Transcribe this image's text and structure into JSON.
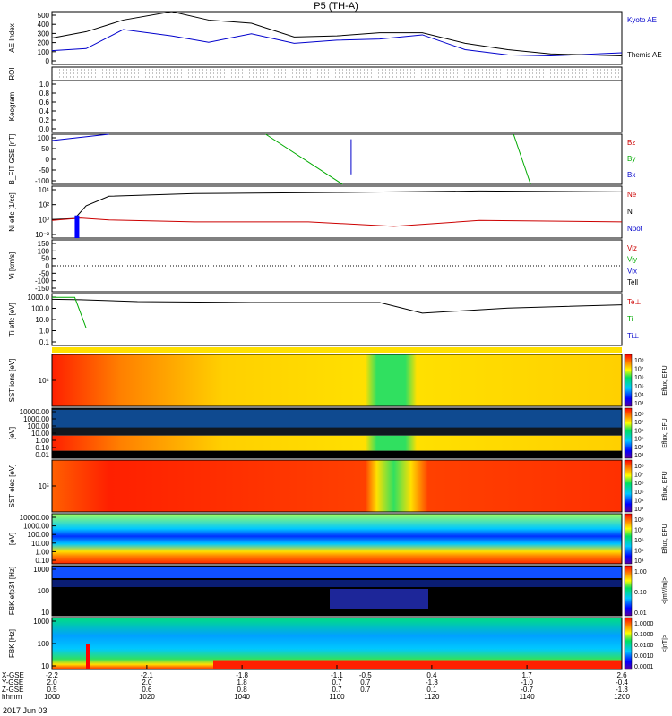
{
  "title": "P5 (TH-A)",
  "date": "2017 Jun 03",
  "colors": {
    "black": "#000000",
    "blue": "#0000cc",
    "red": "#cc0000",
    "green": "#00aa00"
  },
  "chart_data": [
    {
      "id": "ae",
      "type": "line",
      "ylabel": "AE Index",
      "ylim": [
        0,
        500
      ],
      "yticks": [
        "500",
        "400",
        "300",
        "200",
        "100",
        "0"
      ],
      "legend": [
        "Kyoto AE",
        "Themis AE"
      ],
      "series": [
        {
          "name": "Kyoto AE",
          "color": "#0000cc",
          "x": [
            10.0,
            10.12,
            10.25,
            10.42,
            10.55,
            10.7,
            10.85,
            11.0,
            11.15,
            11.3,
            11.45,
            11.6,
            11.75,
            12.0
          ],
          "values": [
            130,
            150,
            330,
            270,
            210,
            290,
            200,
            230,
            240,
            280,
            140,
            90,
            80,
            110
          ]
        },
        {
          "name": "Themis AE",
          "color": "#000000",
          "x": [
            10.0,
            10.12,
            10.25,
            10.42,
            10.55,
            10.7,
            10.85,
            11.0,
            11.15,
            11.3,
            11.45,
            11.6,
            11.75,
            12.0
          ],
          "values": [
            250,
            310,
            420,
            500,
            420,
            390,
            260,
            270,
            300,
            300,
            200,
            140,
            100,
            80
          ]
        }
      ]
    },
    {
      "id": "roi",
      "type": "table",
      "ylabel": "ROI"
    },
    {
      "id": "keogram",
      "type": "heatmap",
      "ylabel": "Keogram",
      "yticks": [
        "1.0",
        "0.8",
        "0.6",
        "0.4",
        "0.2",
        "0.0"
      ],
      "ylim": [
        0,
        1
      ]
    },
    {
      "id": "bfit",
      "type": "line",
      "ylabel": "B_FIT GSE [nT]",
      "ylim": [
        -100,
        100
      ],
      "yticks": [
        "100",
        "50",
        "0",
        "-50",
        "-100"
      ],
      "legend": [
        "Bz",
        "By",
        "Bx"
      ],
      "series": [
        {
          "name": "Bx",
          "color": "#0000cc",
          "x": [
            10.0,
            10.2
          ],
          "values": [
            75,
            100
          ]
        },
        {
          "name": "By",
          "color": "#00aa00",
          "x": [
            10.75,
            11.02
          ],
          "values": [
            100,
            -100
          ]
        },
        {
          "name": "By",
          "color": "#00aa00",
          "x": [
            11.62,
            11.68
          ],
          "values": [
            100,
            -100
          ]
        },
        {
          "name": "Bx",
          "color": "#0000cc",
          "x": [
            11.05,
            11.05
          ],
          "values": [
            80,
            -60
          ]
        }
      ]
    },
    {
      "id": "ni",
      "type": "line",
      "ylabel": "Ni eflc [1/cc]",
      "yticks": [
        "10⁴",
        "10²",
        "10⁰",
        "10⁻²"
      ],
      "legend": [
        "Ne",
        "Ni",
        "Npot"
      ],
      "series": [
        {
          "name": "Ni",
          "color": "#000000",
          "x": [
            10.0,
            10.08,
            10.12,
            10.2,
            10.5,
            11.0,
            11.5,
            12.0
          ],
          "values": [
            0.7,
            1.0,
            100,
            3000,
            8000,
            12000,
            20000,
            15000
          ]
        },
        {
          "name": "Ne",
          "color": "#cc0000",
          "x": [
            10.0,
            10.1,
            10.2,
            10.5,
            10.9,
            11.2,
            11.5,
            12.0
          ],
          "values": [
            0.5,
            1.2,
            0.6,
            0.3,
            0.3,
            0.06,
            0.5,
            0.3
          ]
        }
      ]
    },
    {
      "id": "vi",
      "type": "line",
      "ylabel": "Vi [km/s]",
      "ylim": [
        -150,
        150
      ],
      "yticks": [
        "150",
        "100",
        "50",
        "0",
        "-50",
        "-100",
        "-150"
      ],
      "legend": [
        "Viz",
        "Viy",
        "Vix",
        "Tell"
      ]
    },
    {
      "id": "ti",
      "type": "line",
      "ylabel": "Ti eflc [eV]",
      "yticks": [
        "1000.0",
        "100.0",
        "10.0",
        "1.0",
        "0.1"
      ],
      "legend": [
        "Te⊥",
        "Ti",
        "Ti⊥"
      ],
      "series": [
        {
          "name": "Te⊥",
          "color": "#000000",
          "x": [
            10.0,
            10.1,
            10.3,
            10.7,
            11.15,
            11.3,
            11.6,
            12.0
          ],
          "values": [
            1000,
            900,
            600,
            500,
            500,
            50,
            150,
            300
          ]
        },
        {
          "name": "Ti",
          "color": "#00aa00",
          "x": [
            10.0,
            10.08,
            10.12,
            10.3,
            12.0
          ],
          "values": [
            1500,
            1500,
            2,
            2,
            2
          ]
        }
      ]
    },
    {
      "id": "sst_i",
      "type": "heatmap",
      "ylabel": "SST ions [eV]",
      "yticks": [
        "10⁴"
      ],
      "colorbar": [
        "10⁸",
        "10⁷",
        "10⁶",
        "10⁵",
        "10⁴",
        "10³"
      ],
      "colorbar_label": "Eflux, EFU"
    },
    {
      "id": "esa_i",
      "type": "heatmap",
      "ylabel": "[eV]",
      "yticks": [
        "10000.00",
        "1000.00",
        "100.00",
        "10.00",
        "1.00",
        "0.10",
        "0.01"
      ],
      "colorbar": [
        "10⁸",
        "10⁷",
        "10⁶",
        "10⁵",
        "10⁴",
        "10³"
      ],
      "colorbar_label": "Eflux, EFU"
    },
    {
      "id": "sst_e",
      "type": "heatmap",
      "ylabel": "SST elec [eV]",
      "yticks": [
        "10⁵"
      ],
      "colorbar": [
        "10⁸",
        "10⁷",
        "10⁶",
        "10⁵",
        "10⁴",
        "10³"
      ],
      "colorbar_label": "Eflux, EFU"
    },
    {
      "id": "esa_e",
      "type": "heatmap",
      "ylabel": "[eV]",
      "yticks": [
        "10000.00",
        "1000.00",
        "100.00",
        "10.00",
        "1.00",
        "0.10"
      ],
      "colorbar": [
        "10⁸",
        "10⁷",
        "10⁶",
        "10⁵",
        "10⁴"
      ],
      "colorbar_label": "Eflux, EFU"
    },
    {
      "id": "fbk1",
      "type": "heatmap",
      "ylabel": "FBK efp34 [Hz]",
      "yticks": [
        "1000",
        "100",
        "10"
      ],
      "colorbar": [
        "1.00",
        "0.10",
        "0.01"
      ],
      "colorbar_label": "<|mV/m|>"
    },
    {
      "id": "fbk2",
      "type": "heatmap",
      "ylabel": "FBK [Hz]",
      "yticks": [
        "1000",
        "100",
        "10"
      ],
      "colorbar": [
        "1.0000",
        "0.1000",
        "0.0100",
        "0.0010",
        "0.0001"
      ],
      "colorbar_label": "<|nT|>"
    }
  ],
  "time_axis": {
    "row_labels": [
      "X-GSE",
      "Y-GSE",
      "Z-GSE",
      "hhmm"
    ],
    "columns": [
      {
        "x": 10.0,
        "vals": [
          "-2.2",
          "2.0",
          "0.5",
          "1000"
        ]
      },
      {
        "x": 10.333,
        "vals": [
          "-2.1",
          "2.0",
          "0.6",
          "1020"
        ]
      },
      {
        "x": 10.667,
        "vals": [
          "-1.8",
          "1.8",
          "0.8",
          "1040"
        ]
      },
      {
        "x": 11.0,
        "vals": [
          "-1.1",
          "0.7",
          "0.7",
          "1100"
        ]
      },
      {
        "x": 11.333,
        "vals": [
          "0.4",
          "-1.3",
          "0.1",
          "1120"
        ]
      },
      {
        "x": 11.667,
        "vals": [
          "1.7",
          "-1.0",
          "-0.7",
          "1140"
        ]
      },
      {
        "x": 12.0,
        "vals": [
          "2.6",
          "-0.4",
          "-1.3",
          "1200"
        ]
      }
    ],
    "extra_col": {
      "x": 11.1,
      "vals": [
        "-0.5",
        "0.7",
        "0.7",
        ""
      ]
    },
    "range": [
      10.0,
      12.0
    ]
  }
}
